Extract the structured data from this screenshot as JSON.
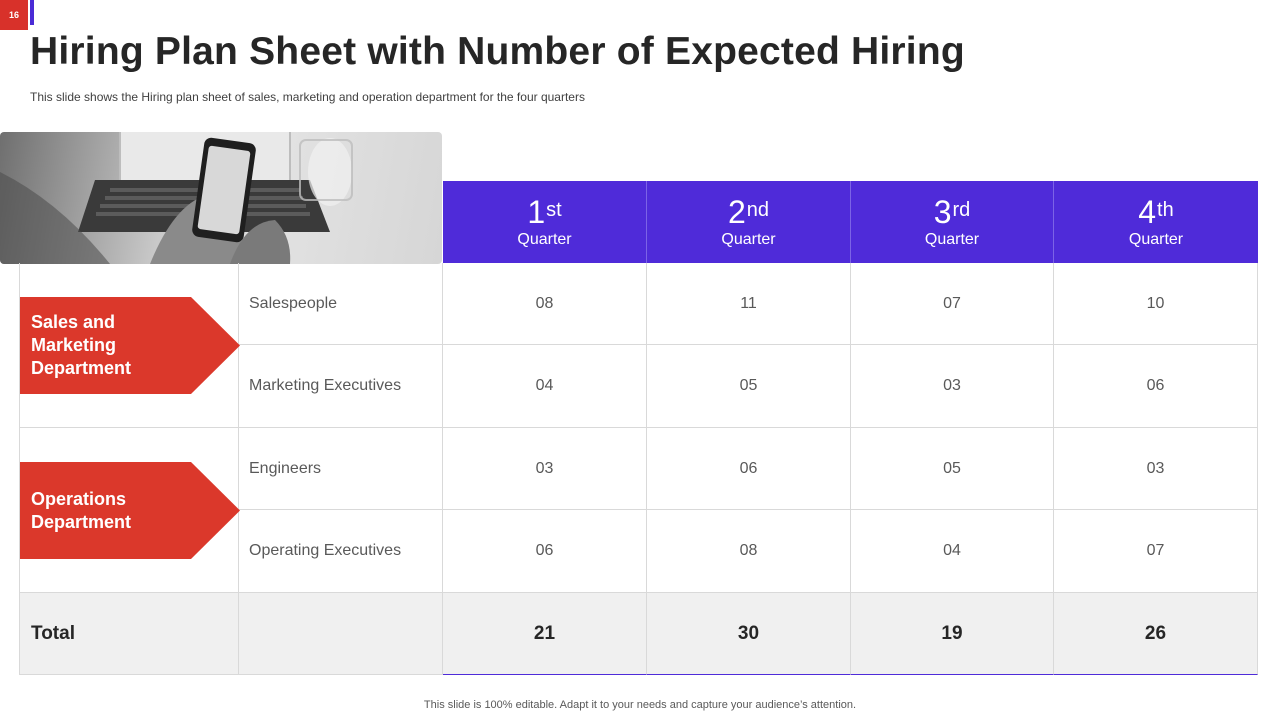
{
  "slide": {
    "number": "16",
    "title": "Hiring Plan Sheet with Number of Expected Hiring",
    "subtitle": "This slide shows the Hiring plan sheet of sales, marketing and operation department for the four quarters",
    "footer": "This slide is 100% editable. Adapt it to your needs and capture your audience’s attention."
  },
  "quarters": [
    {
      "num": "1",
      "suffix": "st",
      "label": "Quarter"
    },
    {
      "num": "2",
      "suffix": "nd",
      "label": "Quarter"
    },
    {
      "num": "3",
      "suffix": "rd",
      "label": "Quarter"
    },
    {
      "num": "4",
      "suffix": "th",
      "label": "Quarter"
    }
  ],
  "departments": [
    {
      "name": "Sales and Marketing Department",
      "roles": [
        {
          "role": "Salespeople",
          "values": [
            "08",
            "11",
            "07",
            "10"
          ]
        },
        {
          "role": "Marketing Executives",
          "values": [
            "04",
            "05",
            "03",
            "06"
          ]
        }
      ]
    },
    {
      "name": "Operations Department",
      "roles": [
        {
          "role": "Engineers",
          "values": [
            "03",
            "06",
            "05",
            "03"
          ]
        },
        {
          "role": "Operating Executives",
          "values": [
            "06",
            "08",
            "04",
            "07"
          ]
        }
      ]
    }
  ],
  "total": {
    "label": "Total",
    "values": [
      "21",
      "30",
      "19",
      "26"
    ]
  },
  "colors": {
    "header": "#4f2bd9",
    "accent_red": "#db382b",
    "total_row": "#f0f0f0"
  }
}
